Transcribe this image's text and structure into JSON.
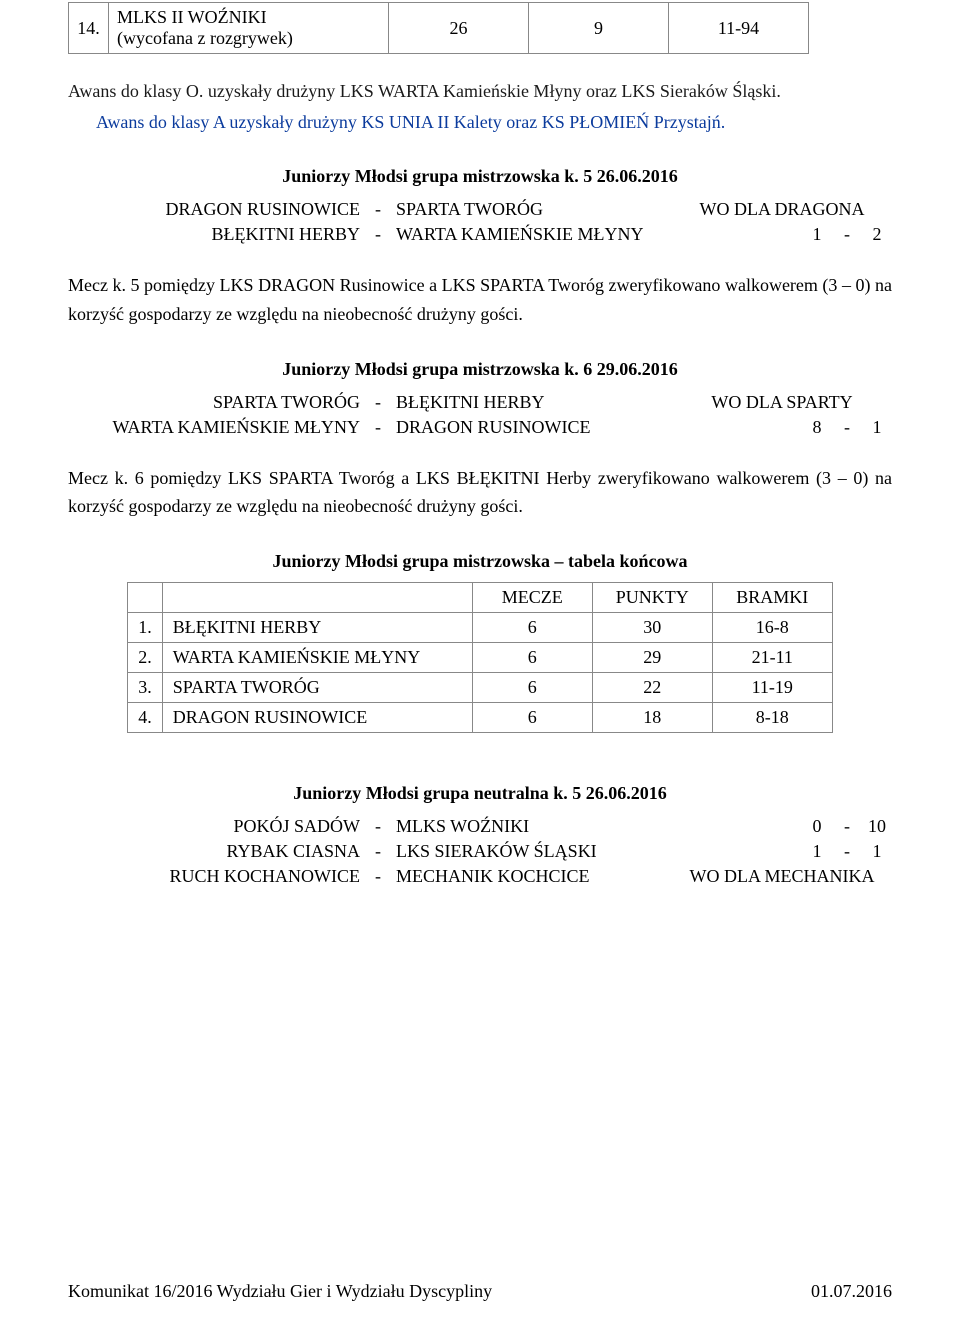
{
  "top_row": {
    "num": "14.",
    "team_l1": "MLKS II WOŹNIKI",
    "team_l2": "(wycofana z rozgrywek)",
    "mecze": "26",
    "punkty": "9",
    "bramki": "11-94"
  },
  "awans_black": "Awans do klasy O. uzyskały drużyny LKS WARTA Kamieńskie Młyny oraz LKS Sieraków Śląski.",
  "awans_blue": "Awans do klasy A uzyskały drużyny KS UNIA II Kalety oraz KS PŁOMIEŃ Przystajń.",
  "sec1": {
    "heading": "Juniorzy Młodsi grupa mistrzowska k. 5 26.06.2016",
    "m1_home": "DRAGON RUSINOWICE",
    "m1_away": "SPARTA TWORÓG",
    "m1_wo": "WO DLA DRAGONA",
    "m2_home": "BŁĘKITNI HERBY",
    "m2_away": "WARTA KAMIEŃSKIE MŁYNY",
    "m2_a": "1",
    "m2_b": "2"
  },
  "para1": "Mecz k. 5 pomiędzy LKS DRAGON Rusinowice a LKS SPARTA Tworóg zweryfikowano walkowerem (3 – 0) na korzyść gospodarzy ze względu na nieobecność drużyny gości.",
  "sec2": {
    "heading": "Juniorzy Młodsi grupa mistrzowska k. 6 29.06.2016",
    "m1_home": "SPARTA TWORÓG",
    "m1_away": "BŁĘKITNI HERBY",
    "m1_wo": "WO DLA SPARTY",
    "m2_home": "WARTA KAMIEŃSKIE MŁYNY",
    "m2_away": "DRAGON RUSINOWICE",
    "m2_a": "8",
    "m2_b": "1"
  },
  "para2": "Mecz k. 6 pomiędzy LKS SPARTA Tworóg a LKS BŁĘKITNI Herby zweryfikowano walkowerem (3 – 0) na korzyść gospodarzy ze względu na nieobecność drużyny gości.",
  "final": {
    "heading": "Juniorzy Młodsi grupa mistrzowska – tabela końcowa",
    "h_mecze": "MECZE",
    "h_punkty": "PUNKTY",
    "h_bramki": "BRAMKI",
    "rows": [
      {
        "num": "1.",
        "team": "BŁĘKITNI HERBY",
        "m": "6",
        "p": "30",
        "b": "16-8"
      },
      {
        "num": "2.",
        "team": "WARTA KAMIEŃSKIE MŁYNY",
        "m": "6",
        "p": "29",
        "b": "21-11"
      },
      {
        "num": "3.",
        "team": "SPARTA TWORÓG",
        "m": "6",
        "p": "22",
        "b": "11-19"
      },
      {
        "num": "4.",
        "team": "DRAGON RUSINOWICE",
        "m": "6",
        "p": "18",
        "b": "8-18"
      }
    ]
  },
  "sec3": {
    "heading": "Juniorzy Młodsi grupa neutralna k. 5 26.06.2016",
    "m1_home": "POKÓJ SADÓW",
    "m1_away": "MLKS WOŹNIKI",
    "m1_a": "0",
    "m1_b": "10",
    "m2_home": "RYBAK CIASNA",
    "m2_away": "LKS SIERAKÓW ŚLĄSKI",
    "m2_a": "1",
    "m2_b": "1",
    "m3_home": "RUCH KOCHANOWICE",
    "m3_away": "MECHANIK KOCHCICE",
    "m3_wo": "WO DLA MECHANIKA"
  },
  "footer_left": "Komunikat 16/2016 Wydziału Gier i Wydziału Dyscypliny",
  "footer_right": "01.07.2016",
  "dash": "-"
}
